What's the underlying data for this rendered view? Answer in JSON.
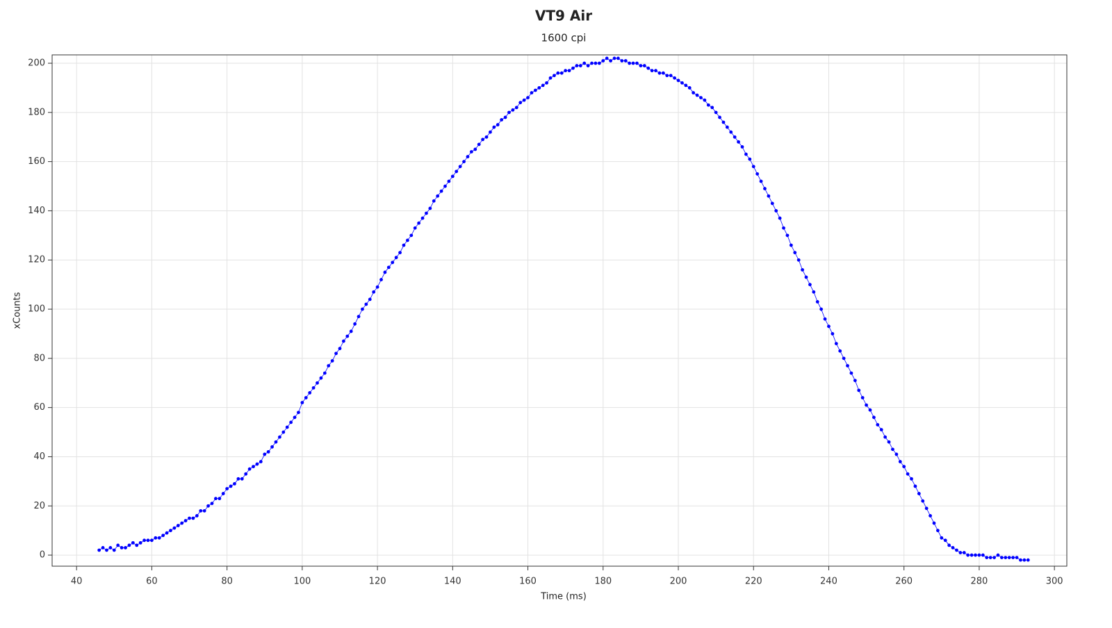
{
  "chart_data": {
    "type": "line",
    "title": "VT9 Air",
    "subtitle": "1600 cpi",
    "x_label": "Time (ms)",
    "y_label": "xCounts",
    "xlim": [
      33.5,
      303.3
    ],
    "ylim": [
      -4.5,
      203.4
    ],
    "xticks": [
      40,
      60,
      80,
      100,
      120,
      140,
      160,
      180,
      200,
      220,
      240,
      260,
      280,
      300
    ],
    "yticks": [
      0,
      20,
      40,
      60,
      80,
      100,
      120,
      140,
      160,
      180,
      200
    ],
    "grid": true,
    "markers": true,
    "x": [
      46,
      47,
      48,
      49,
      50,
      51,
      52,
      53,
      54,
      55,
      56,
      57,
      58,
      59,
      60,
      61,
      62,
      63,
      64,
      65,
      66,
      67,
      68,
      69,
      70,
      71,
      72,
      73,
      74,
      75,
      76,
      77,
      78,
      79,
      80,
      81,
      82,
      83,
      84,
      85,
      86,
      87,
      88,
      89,
      90,
      91,
      92,
      93,
      94,
      95,
      96,
      97,
      98,
      99,
      100,
      101,
      102,
      103,
      104,
      105,
      106,
      107,
      108,
      109,
      110,
      111,
      112,
      113,
      114,
      115,
      116,
      117,
      118,
      119,
      120,
      121,
      122,
      123,
      124,
      125,
      126,
      127,
      128,
      129,
      130,
      131,
      132,
      133,
      134,
      135,
      136,
      137,
      138,
      139,
      140,
      141,
      142,
      143,
      144,
      145,
      146,
      147,
      148,
      149,
      150,
      151,
      152,
      153,
      154,
      155,
      156,
      157,
      158,
      159,
      160,
      161,
      162,
      163,
      164,
      165,
      166,
      167,
      168,
      169,
      170,
      171,
      172,
      173,
      174,
      175,
      176,
      177,
      178,
      179,
      180,
      181,
      182,
      183,
      184,
      185,
      186,
      187,
      188,
      189,
      190,
      191,
      192,
      193,
      194,
      195,
      196,
      197,
      198,
      199,
      200,
      201,
      202,
      203,
      204,
      205,
      206,
      207,
      208,
      209,
      210,
      211,
      212,
      213,
      214,
      215,
      216,
      217,
      218,
      219,
      220,
      221,
      222,
      223,
      224,
      225,
      226,
      227,
      228,
      229,
      230,
      231,
      232,
      233,
      234,
      235,
      236,
      237,
      238,
      239,
      240,
      241,
      242,
      243,
      244,
      245,
      246,
      247,
      248,
      249,
      250,
      251,
      252,
      253,
      254,
      255,
      256,
      257,
      258,
      259,
      260,
      261,
      262,
      263,
      264,
      265,
      266,
      267,
      268,
      269,
      270,
      271,
      272,
      273,
      274,
      275,
      276,
      277,
      278,
      279,
      280,
      281,
      282,
      283,
      284,
      285,
      286,
      287,
      288,
      289,
      290,
      291,
      292,
      293
    ],
    "series": [
      {
        "color": "#0000ff",
        "values": [
          2,
          3,
          2,
          3,
          2,
          4,
          3,
          3,
          4,
          5,
          4,
          5,
          6,
          6,
          6,
          7,
          7,
          8,
          9,
          10,
          11,
          12,
          13,
          14,
          15,
          15,
          16,
          18,
          18,
          20,
          21,
          23,
          23,
          25,
          27,
          28,
          29,
          31,
          31,
          33,
          35,
          36,
          37,
          38,
          41,
          42,
          44,
          46,
          48,
          50,
          52,
          54,
          56,
          58,
          62,
          64,
          66,
          68,
          70,
          72,
          74,
          77,
          79,
          82,
          84,
          87,
          89,
          91,
          94,
          97,
          100,
          102,
          104,
          107,
          109,
          112,
          115,
          117,
          119,
          121,
          123,
          126,
          128,
          130,
          133,
          135,
          137,
          139,
          141,
          144,
          146,
          148,
          150,
          152,
          154,
          156,
          158,
          160,
          162,
          164,
          165,
          167,
          169,
          170,
          172,
          174,
          175,
          177,
          178,
          180,
          181,
          182,
          184,
          185,
          186,
          188,
          189,
          190,
          191,
          192,
          194,
          195,
          196,
          196,
          197,
          197,
          198,
          199,
          199,
          200,
          199,
          200,
          200,
          200,
          201,
          202,
          201,
          202,
          202,
          201,
          201,
          200,
          200,
          200,
          199,
          199,
          198,
          197,
          197,
          196,
          196,
          195,
          195,
          194,
          193,
          192,
          191,
          190,
          188,
          187,
          186,
          185,
          183,
          182,
          180,
          178,
          176,
          174,
          172,
          170,
          168,
          166,
          163,
          161,
          158,
          155,
          152,
          149,
          146,
          143,
          140,
          137,
          133,
          130,
          126,
          123,
          120,
          116,
          113,
          110,
          107,
          103,
          100,
          96,
          93,
          90,
          86,
          83,
          80,
          77,
          74,
          71,
          67,
          64,
          61,
          59,
          56,
          53,
          51,
          48,
          46,
          43,
          41,
          38,
          36,
          33,
          31,
          28,
          25,
          22,
          19,
          16,
          13,
          10,
          7,
          6,
          4,
          3,
          2,
          1,
          1,
          0,
          0,
          0,
          0,
          0,
          -1,
          -1,
          -1,
          0,
          -1,
          -1,
          -1,
          -1,
          -1,
          -2,
          -2,
          -2
        ]
      }
    ]
  }
}
